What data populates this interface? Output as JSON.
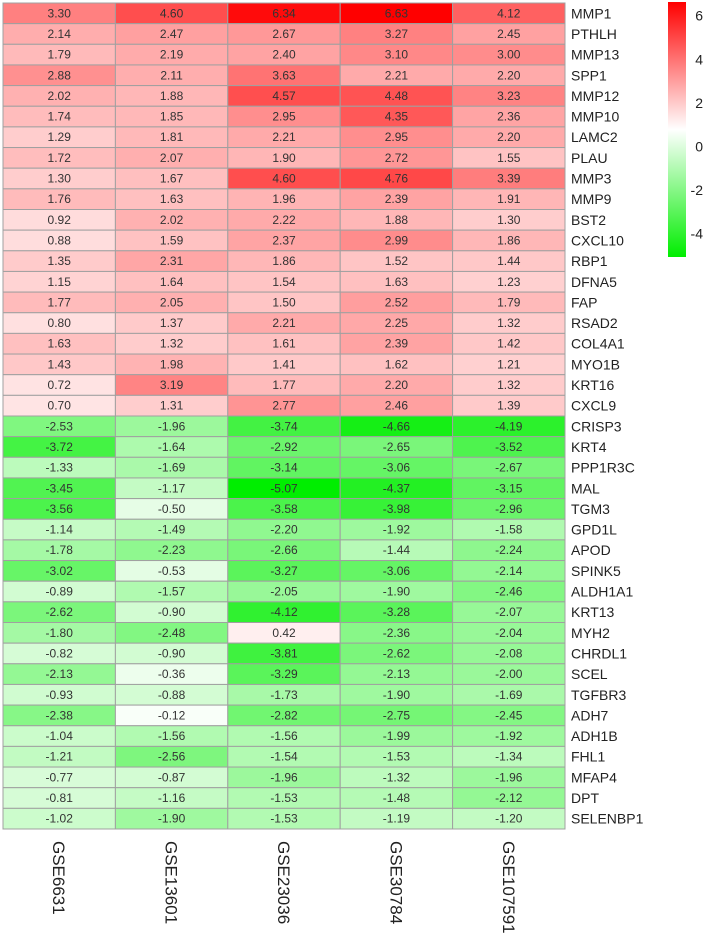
{
  "chart_data": {
    "type": "heatmap",
    "columns": [
      "GSE6631",
      "GSE13601",
      "GSE23036",
      "GSE30784",
      "GSE107591"
    ],
    "rows": [
      {
        "gene": "MMP1",
        "values": [
          3.3,
          4.6,
          6.34,
          6.63,
          4.12
        ]
      },
      {
        "gene": "PTHLH",
        "values": [
          2.14,
          2.47,
          2.67,
          3.27,
          2.45
        ]
      },
      {
        "gene": "MMP13",
        "values": [
          1.79,
          2.19,
          2.4,
          3.1,
          3.0
        ]
      },
      {
        "gene": "SPP1",
        "values": [
          2.88,
          2.11,
          3.63,
          2.21,
          2.2
        ]
      },
      {
        "gene": "MMP12",
        "values": [
          2.02,
          1.88,
          4.57,
          4.48,
          3.23
        ]
      },
      {
        "gene": "MMP10",
        "values": [
          1.74,
          1.85,
          2.95,
          4.35,
          2.36
        ]
      },
      {
        "gene": "LAMC2",
        "values": [
          1.29,
          1.81,
          2.21,
          2.95,
          2.2
        ]
      },
      {
        "gene": "PLAU",
        "values": [
          1.72,
          2.07,
          1.9,
          2.72,
          1.55
        ]
      },
      {
        "gene": "MMP3",
        "values": [
          1.3,
          1.67,
          4.6,
          4.76,
          3.39
        ]
      },
      {
        "gene": "MMP9",
        "values": [
          1.76,
          1.63,
          1.96,
          2.39,
          1.91
        ]
      },
      {
        "gene": "BST2",
        "values": [
          0.92,
          2.02,
          2.22,
          1.88,
          1.3
        ]
      },
      {
        "gene": "CXCL10",
        "values": [
          0.88,
          1.59,
          2.37,
          2.99,
          1.86
        ]
      },
      {
        "gene": "RBP1",
        "values": [
          1.35,
          2.31,
          1.86,
          1.52,
          1.44
        ]
      },
      {
        "gene": "DFNA5",
        "values": [
          1.15,
          1.64,
          1.54,
          1.63,
          1.23
        ]
      },
      {
        "gene": "FAP",
        "values": [
          1.77,
          2.05,
          1.5,
          2.52,
          1.79
        ]
      },
      {
        "gene": "RSAD2",
        "values": [
          0.8,
          1.37,
          2.21,
          2.25,
          1.32
        ]
      },
      {
        "gene": "COL4A1",
        "values": [
          1.63,
          1.32,
          1.61,
          2.39,
          1.42
        ]
      },
      {
        "gene": "MYO1B",
        "values": [
          1.43,
          1.98,
          1.41,
          1.62,
          1.21
        ]
      },
      {
        "gene": "KRT16",
        "values": [
          0.72,
          3.19,
          1.77,
          2.2,
          1.32
        ]
      },
      {
        "gene": "CXCL9",
        "values": [
          0.7,
          1.31,
          2.77,
          2.46,
          1.39
        ]
      },
      {
        "gene": "CRISP3",
        "values": [
          -2.53,
          -1.96,
          -3.74,
          -4.66,
          -4.19
        ]
      },
      {
        "gene": "KRT4",
        "values": [
          -3.72,
          -1.64,
          -2.92,
          -2.65,
          -3.52
        ]
      },
      {
        "gene": "PPP1R3C",
        "values": [
          -1.33,
          -1.69,
          -3.14,
          -3.06,
          -2.67
        ]
      },
      {
        "gene": "MAL",
        "values": [
          -3.45,
          -1.17,
          -5.07,
          -4.37,
          -3.15
        ]
      },
      {
        "gene": "TGM3",
        "values": [
          -3.56,
          -0.5,
          -3.58,
          -3.98,
          -2.96
        ]
      },
      {
        "gene": "GPD1L",
        "values": [
          -1.14,
          -1.49,
          -2.2,
          -1.92,
          -1.58
        ]
      },
      {
        "gene": "APOD",
        "values": [
          -1.78,
          -2.23,
          -2.66,
          -1.44,
          -2.24
        ]
      },
      {
        "gene": "SPINK5",
        "values": [
          -3.02,
          -0.53,
          -3.27,
          -3.06,
          -2.14
        ]
      },
      {
        "gene": "ALDH1A1",
        "values": [
          -0.89,
          -1.57,
          -2.05,
          -1.9,
          -2.46
        ]
      },
      {
        "gene": "KRT13",
        "values": [
          -2.62,
          -0.9,
          -4.12,
          -3.28,
          -2.07
        ]
      },
      {
        "gene": "MYH2",
        "values": [
          -1.8,
          -2.48,
          0.42,
          -2.36,
          -2.04
        ]
      },
      {
        "gene": "CHRDL1",
        "values": [
          -0.82,
          -0.9,
          -3.81,
          -2.62,
          -2.08
        ]
      },
      {
        "gene": "SCEL",
        "values": [
          -2.13,
          -0.36,
          -3.29,
          -2.13,
          -2.0
        ]
      },
      {
        "gene": "TGFBR3",
        "values": [
          -0.93,
          -0.88,
          -1.73,
          -1.9,
          -1.69
        ]
      },
      {
        "gene": "ADH7",
        "values": [
          -2.38,
          -0.12,
          -2.82,
          -2.75,
          -2.45
        ]
      },
      {
        "gene": "ADH1B",
        "values": [
          -1.04,
          -1.56,
          -1.56,
          -1.99,
          -1.92
        ]
      },
      {
        "gene": "FHL1",
        "values": [
          -1.21,
          -2.56,
          -1.54,
          -1.53,
          -1.34
        ]
      },
      {
        "gene": "MFAP4",
        "values": [
          -0.77,
          -0.87,
          -1.96,
          -1.32,
          -1.96
        ]
      },
      {
        "gene": "DPT",
        "values": [
          -0.81,
          -1.16,
          -1.53,
          -1.48,
          -2.12
        ]
      },
      {
        "gene": "SELENBP1",
        "values": [
          -1.02,
          -1.9,
          -1.53,
          -1.19,
          -1.2
        ]
      }
    ],
    "color_scale": {
      "min": -5.07,
      "max": 6.63,
      "low_color": "#00ee00",
      "mid_color": "#ffffff",
      "high_color": "#ff0000"
    },
    "legend": {
      "placement": "top-right",
      "ticks": [
        "6",
        "4",
        "2",
        "0",
        "-2",
        "-4"
      ]
    },
    "title": "",
    "xlabel": "",
    "ylabel": ""
  }
}
